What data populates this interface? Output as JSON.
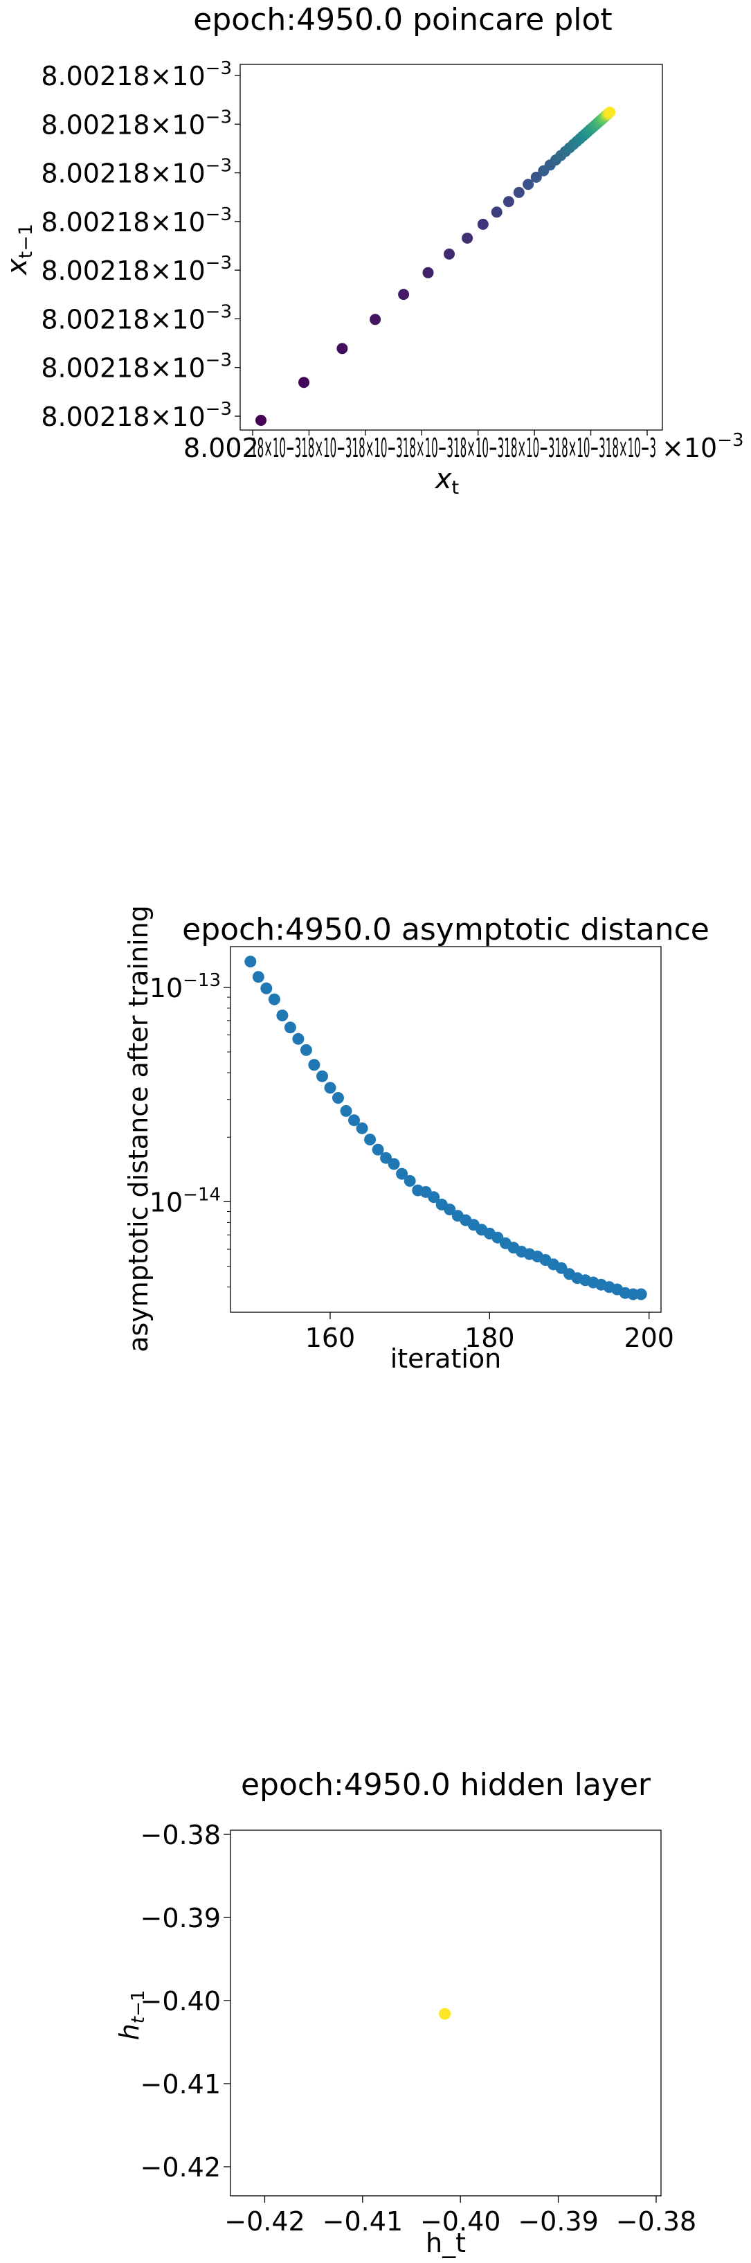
{
  "chart_data": [
    {
      "type": "scatter",
      "title": "epoch:4950.0 poincare plot",
      "xlabel": "x_t",
      "ylabel": "x_{t-1}",
      "colormap": "viridis",
      "ytick_mantissa": "8.00218",
      "yticks_count": 8,
      "xtick_mantissa": "8.002",
      "xticks_count": 8,
      "xtick_overlap_text": "18×10−318×10−318×10−318×10−318×10−318×10−318×10−318×10−3",
      "tick_exponent": "−3",
      "x": [
        0.0,
        0.112,
        0.212,
        0.298,
        0.372,
        0.436,
        0.491,
        0.538,
        0.579,
        0.615,
        0.646,
        0.673,
        0.697,
        0.718,
        0.737,
        0.754,
        0.769,
        0.782,
        0.794,
        0.805,
        0.815,
        0.824,
        0.832,
        0.839,
        0.846,
        0.852,
        0.858,
        0.863,
        0.868,
        0.872,
        0.876,
        0.88,
        0.883,
        0.886,
        0.889,
        0.891,
        0.893,
        0.895,
        0.897,
        0.899,
        0.9,
        0.901,
        0.902,
        0.903,
        0.904,
        0.905,
        0.906,
        0.907,
        0.908,
        0.91
      ],
      "y": [
        0.0,
        0.112,
        0.212,
        0.298,
        0.372,
        0.436,
        0.491,
        0.538,
        0.579,
        0.615,
        0.646,
        0.673,
        0.697,
        0.718,
        0.737,
        0.754,
        0.769,
        0.782,
        0.794,
        0.805,
        0.815,
        0.824,
        0.832,
        0.839,
        0.846,
        0.852,
        0.858,
        0.863,
        0.868,
        0.872,
        0.876,
        0.88,
        0.883,
        0.886,
        0.889,
        0.891,
        0.893,
        0.895,
        0.897,
        0.899,
        0.9,
        0.901,
        0.902,
        0.903,
        0.904,
        0.905,
        0.906,
        0.907,
        0.908,
        0.91
      ]
    },
    {
      "type": "scatter",
      "title": "epoch:4950.0 asymptotic distance",
      "xlabel": "iteration",
      "ylabel": "asymptotic distance after training",
      "yscale": "log",
      "color": "#1f77b4",
      "xlim": [
        147.5,
        201.5
      ],
      "ylim": [
        3.05e-15,
        1.55e-13
      ],
      "xticks": [
        "160",
        "180",
        "200"
      ],
      "xtick_values": [
        160,
        180,
        200
      ],
      "ytick_base": "10",
      "yticks": [
        {
          "value": 1e-13,
          "exponent": "−13"
        },
        {
          "value": 1e-14,
          "exponent": "−14"
        }
      ],
      "x": [
        150,
        151,
        152,
        153,
        154,
        155,
        156,
        157,
        158,
        159,
        160,
        161,
        162,
        163,
        164,
        165,
        166,
        167,
        168,
        169,
        170,
        171,
        172,
        173,
        174,
        175,
        176,
        177,
        178,
        179,
        180,
        181,
        182,
        183,
        184,
        185,
        186,
        187,
        188,
        189,
        190,
        191,
        192,
        193,
        194,
        195,
        196,
        197,
        198,
        199
      ],
      "y": [
        1.32e-13,
        1.12e-13,
        9.9e-14,
        8.8e-14,
        7.4e-14,
        6.5e-14,
        5.75e-14,
        5.1e-14,
        4.35e-14,
        3.85e-14,
        3.4e-14,
        3.05e-14,
        2.65e-14,
        2.4e-14,
        2.2e-14,
        1.95e-14,
        1.75e-14,
        1.6e-14,
        1.5e-14,
        1.35e-14,
        1.25e-14,
        1.13e-14,
        1.11e-14,
        1.05e-14,
        9.7e-15,
        9.2e-15,
        8.6e-15,
        8.2e-15,
        7.8e-15,
        7.4e-15,
        7.1e-15,
        6.8e-15,
        6.4e-15,
        6.1e-15,
        5.85e-15,
        5.7e-15,
        5.55e-15,
        5.35e-15,
        5.1e-15,
        4.9e-15,
        4.6e-15,
        4.4e-15,
        4.3e-15,
        4.2e-15,
        4.1e-15,
        4e-15,
        3.9e-15,
        3.75e-15,
        3.7e-15,
        3.7e-15
      ]
    },
    {
      "type": "scatter",
      "title": "epoch:4950.0 hidden layer",
      "xlabel": "h_t",
      "ylabel": "h_{t-1}",
      "color": "#fde725",
      "xlim": [
        -0.4235,
        -0.3795
      ],
      "ylim": [
        -0.4235,
        -0.3795
      ],
      "xticks": [
        "−0.42",
        "−0.41",
        "−0.40",
        "−0.39",
        "−0.38"
      ],
      "xtick_values": [
        -0.42,
        -0.41,
        -0.4,
        -0.39,
        -0.38
      ],
      "yticks": [
        "−0.38",
        "−0.39",
        "−0.40",
        "−0.41",
        "−0.42"
      ],
      "ytick_values": [
        -0.38,
        -0.39,
        -0.4,
        -0.41,
        -0.42
      ],
      "x": [
        -0.4016
      ],
      "y": [
        -0.4016
      ]
    }
  ]
}
